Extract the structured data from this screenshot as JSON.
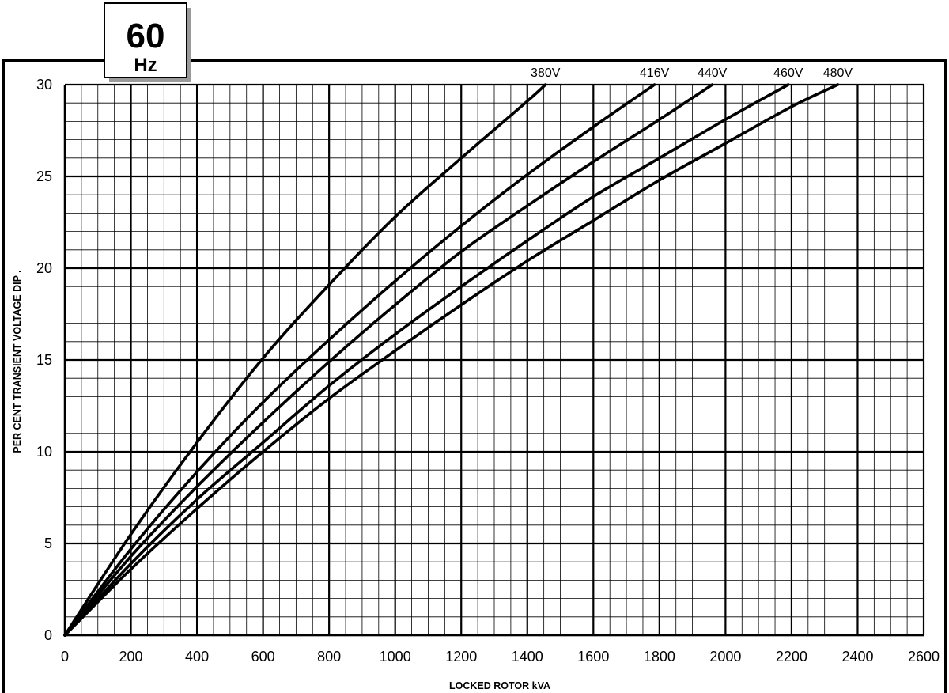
{
  "badge": {
    "frequency": "60",
    "unit": "Hz"
  },
  "chart_data": {
    "type": "line",
    "title": "",
    "xlabel": "LOCKED ROTOR kVA",
    "ylabel": "PER CENT TRANSIENT VOLTAGE DIP .",
    "xlim": [
      0,
      2600
    ],
    "ylim": [
      0,
      30
    ],
    "x_ticks": [
      0,
      200,
      400,
      600,
      800,
      1000,
      1200,
      1400,
      1600,
      1800,
      2000,
      2200,
      2400,
      2600
    ],
    "y_ticks": [
      0,
      5,
      10,
      15,
      20,
      25,
      30
    ],
    "x_minor_step": 50,
    "y_minor_step": 1,
    "grid": true,
    "series": [
      {
        "name": "380V",
        "x": [
          0,
          200,
          400,
          600,
          800,
          1000,
          1200,
          1400,
          1455
        ],
        "y": [
          0,
          5.5,
          10.5,
          15.1,
          19.1,
          22.8,
          26.0,
          29.1,
          30
        ]
      },
      {
        "name": "416V",
        "x": [
          0,
          200,
          400,
          600,
          800,
          1000,
          1200,
          1400,
          1600,
          1785
        ],
        "y": [
          0,
          4.7,
          8.9,
          12.7,
          16.1,
          19.3,
          22.3,
          25.1,
          27.7,
          30
        ]
      },
      {
        "name": "440V",
        "x": [
          0,
          200,
          400,
          600,
          800,
          1000,
          1200,
          1400,
          1600,
          1800,
          1960
        ],
        "y": [
          0,
          4.3,
          8.1,
          11.6,
          14.9,
          18.0,
          20.9,
          23.4,
          25.8,
          28.1,
          30
        ]
      },
      {
        "name": "460V",
        "x": [
          0,
          200,
          400,
          600,
          800,
          1000,
          1200,
          1400,
          1600,
          1800,
          2000,
          2190
        ],
        "y": [
          0,
          3.9,
          7.4,
          10.5,
          13.6,
          16.4,
          19.0,
          21.5,
          23.9,
          26.0,
          28.1,
          30
        ]
      },
      {
        "name": "480V",
        "x": [
          0,
          200,
          400,
          600,
          800,
          1000,
          1200,
          1400,
          1600,
          1800,
          2000,
          2200,
          2340
        ],
        "y": [
          0,
          3.6,
          6.9,
          10.0,
          12.9,
          15.5,
          18.0,
          20.4,
          22.6,
          24.8,
          26.8,
          28.8,
          30
        ]
      }
    ]
  }
}
